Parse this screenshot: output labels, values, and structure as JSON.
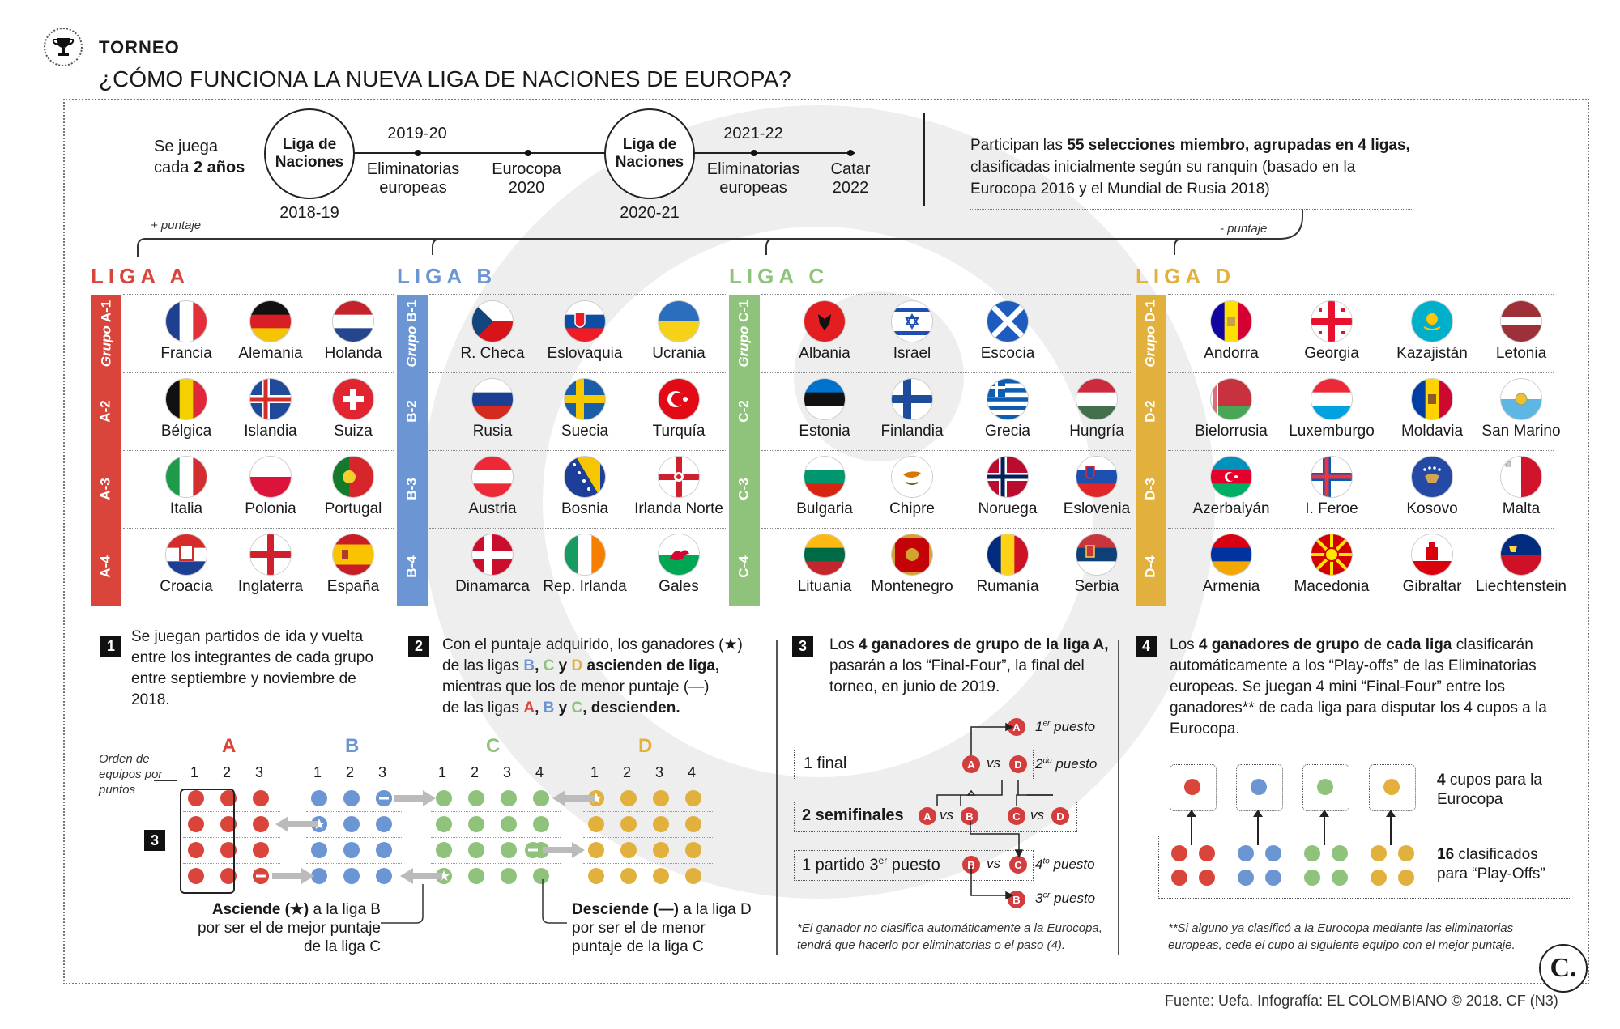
{
  "header": {
    "kicker": "TORNEO",
    "title": "¿CÓMO FUNCIONA LA NUEVA LIGA DE NACIONES DE EUROPA?"
  },
  "timeline": {
    "intro_line1": "Se juega",
    "intro_line2_pre": "cada ",
    "intro_line2_bold": "2 años",
    "circle1": "Liga de Naciones",
    "circle1_year": "2018-19",
    "event1_year": "2019-20",
    "event1": "Eliminatorias europeas",
    "event2": "Eurocopa 2020",
    "circle2": "Liga de Naciones",
    "circle2_year": "2020-21",
    "event3_year": "2021-22",
    "event3": "Eliminatorias europeas",
    "event4": "Catar 2022",
    "more_points": "+ puntaje",
    "less_points": "- puntaje"
  },
  "participants": {
    "pre": "Participan las ",
    "bold": "55 selecciones miembro, agrupadas en 4 ligas,",
    "rest": "clasificadas inicialmente según su ranquin (basado en la Eurocopa 2016 y el Mundial de Rusia 2018)"
  },
  "leagues": [
    {
      "title": "LIGA A",
      "color": "#d9453b",
      "groups": [
        {
          "label": "Grupo A-1",
          "countries": [
            "Francia",
            "Alemania",
            "Holanda"
          ]
        },
        {
          "label": "A-2",
          "countries": [
            "Bélgica",
            "Islandia",
            "Suiza"
          ]
        },
        {
          "label": "A-3",
          "countries": [
            "Italia",
            "Polonia",
            "Portugal"
          ]
        },
        {
          "label": "A-4",
          "countries": [
            "Croacia",
            "Inglaterra",
            "España"
          ]
        }
      ]
    },
    {
      "title": "LIGA B",
      "color": "#6c96d3",
      "groups": [
        {
          "label": "Grupo B-1",
          "countries": [
            "R. Checa",
            "Eslovaquia",
            "Ucrania"
          ]
        },
        {
          "label": "B-2",
          "countries": [
            "Rusia",
            "Suecia",
            "Turquía"
          ]
        },
        {
          "label": "B-3",
          "countries": [
            "Austria",
            "Bosnia",
            "Irlanda Norte"
          ]
        },
        {
          "label": "B-4",
          "countries": [
            "Dinamarca",
            "Rep. Irlanda",
            "Gales"
          ]
        }
      ]
    },
    {
      "title": "LIGA C",
      "color": "#8fc27a",
      "groups": [
        {
          "label": "Grupo C-1",
          "countries": [
            "Albania",
            "Israel",
            "Escocia"
          ]
        },
        {
          "label": "C-2",
          "countries": [
            "Estonia",
            "Finlandia",
            "Grecia",
            "Hungría"
          ]
        },
        {
          "label": "C-3",
          "countries": [
            "Bulgaria",
            "Chipre",
            "Noruega",
            "Eslovenia"
          ]
        },
        {
          "label": "C-4",
          "countries": [
            "Lituania",
            "Montenegro",
            "Rumanía",
            "Serbia"
          ]
        }
      ]
    },
    {
      "title": "LIGA D",
      "color": "#e2b03c",
      "groups": [
        {
          "label": "Grupo D-1",
          "countries": [
            "Andorra",
            "Georgia",
            "Kazajistán",
            "Letonia"
          ]
        },
        {
          "label": "D-2",
          "countries": [
            "Bielorrusia",
            "Luxemburgo",
            "Moldavia",
            "San Marino"
          ]
        },
        {
          "label": "D-3",
          "countries": [
            "Azerbaiyán",
            "I. Feroe",
            "Kosovo",
            "Malta"
          ]
        },
        {
          "label": "D-4",
          "countries": [
            "Armenia",
            "Macedonia",
            "Gibraltar",
            "Liechtenstein"
          ]
        }
      ]
    }
  ],
  "steps": {
    "s1": {
      "num": "1",
      "text": "Se juegan partidos de ida y vuelta entre los integrantes de cada grupo entre septiembre y noviembre de 2018."
    },
    "s2": {
      "num": "2",
      "t1": "Con el puntaje adquirido, los ganadores (★)",
      "t2a": "de las ligas ",
      "t2b": "B",
      "t2c": ", ",
      "t2d": "C",
      "t2e": " y ",
      "t2f": "D",
      "t2g": " ascienden de liga,",
      "t3": "mientras que los de menor puntaje (—)",
      "t4a": "de las ligas ",
      "t4b": "A",
      "t4c": ", ",
      "t4d": "B",
      "t4e": " y ",
      "t4f": "C",
      "t4g": ", descienden."
    },
    "s3": {
      "num": "3",
      "pre": "Los ",
      "bold": "4 ganadores de grupo de la liga A,",
      "rest": "pasarán a los “Final-Four”, la final del torneo, en junio de 2019."
    },
    "s4": {
      "num": "4",
      "pre": "Los ",
      "bold": "4 ganadores de grupo de cada liga",
      "rest": " clasificarán automáticamente a los “Play-offs” de las Eliminatorias europeas. Se juegan 4 mini “Final-Four” entre los ganadores** de cada liga para disputar los 4 cupos a la Eurocopa."
    }
  },
  "diagram": {
    "order_label": "Orden de equipos por puntos",
    "letters": [
      "A",
      "B",
      "C",
      "D"
    ],
    "nums3": [
      "1",
      "2",
      "3"
    ],
    "nums4": [
      "1",
      "2",
      "3",
      "4"
    ],
    "marker": "3",
    "asc_bold": "Asciende (★)",
    "asc_rest1": " a la liga B",
    "asc_rest2": "por ser el de mejor puntaje",
    "asc_rest3": "de la liga C",
    "des_bold": "Desciende (—)",
    "des_rest1": " a la liga D",
    "des_rest2": "por ser el de menor",
    "des_rest3": "puntaje de la liga C"
  },
  "finalfour": {
    "final": "1 final",
    "semis": "2 semifinales",
    "third": "1 partido 3",
    "third_sup": "er",
    "third_rest": " puesto",
    "vs": "vs",
    "p1": "1",
    "p1_sup": "er",
    "p1_rest": " puesto",
    "p2": "2",
    "p2_sup": "do",
    "p2_rest": " puesto",
    "p3": "3",
    "p3_sup": "er",
    "p3_rest": " puesto",
    "p4": "4",
    "p4_sup": "to",
    "p4_rest": " puesto",
    "note": "*El ganador no clasifica automáticamente a la Eurocopa, tendrá que hacerlo por eliminatorias o el paso (4).",
    "A": "A",
    "B": "B",
    "C": "C",
    "D": "D"
  },
  "playoffs": {
    "cupos_bold": "4",
    "cupos_rest": " cupos para la Eurocopa",
    "clas_bold": "16",
    "clas_rest": " clasificados para “Play-Offs”",
    "note": "**Si alguno ya clasificó a la Eurocopa mediante las eliminatorias europeas, cede el cupo al siguiente equipo con el mejor puntaje."
  },
  "footer": {
    "source": "Fuente: Uefa. Infografía: EL COLOMBIANO © 2018. CF (N3)",
    "logo": "C."
  },
  "colors": {
    "a": "#d9453b",
    "b": "#6c96d3",
    "c": "#8fc27a",
    "d": "#e2b03c"
  }
}
